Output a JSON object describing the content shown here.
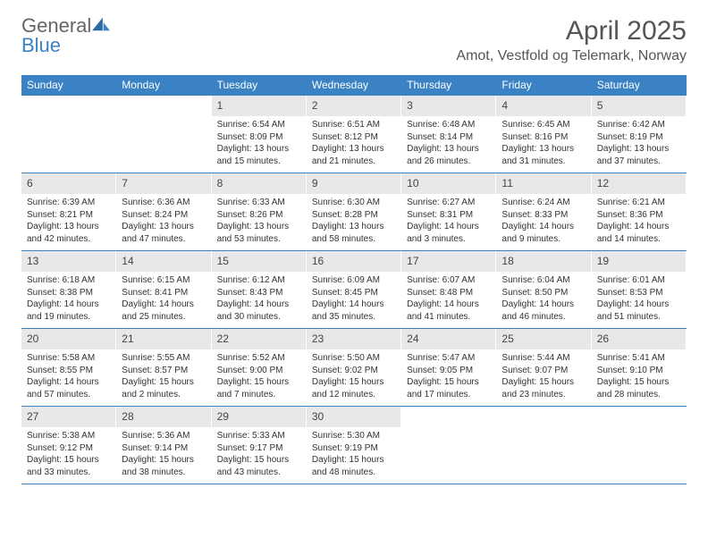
{
  "logo": {
    "text_gray": "General",
    "text_blue": "Blue"
  },
  "title": "April 2025",
  "location": "Amot, Vestfold og Telemark, Norway",
  "colors": {
    "header_bg": "#3b82c4",
    "header_text": "#ffffff",
    "daynum_bg": "#e8e8e8",
    "border": "#3b82c4",
    "body_text": "#333333",
    "title_text": "#555555"
  },
  "typography": {
    "title_fontsize": 30,
    "location_fontsize": 16,
    "dayheader_fontsize": 12,
    "daynum_fontsize": 12,
    "body_fontsize": 10
  },
  "day_headers": [
    "Sunday",
    "Monday",
    "Tuesday",
    "Wednesday",
    "Thursday",
    "Friday",
    "Saturday"
  ],
  "weeks": [
    [
      null,
      null,
      {
        "n": "1",
        "sr": "Sunrise: 6:54 AM",
        "ss": "Sunset: 8:09 PM",
        "dl": "Daylight: 13 hours and 15 minutes."
      },
      {
        "n": "2",
        "sr": "Sunrise: 6:51 AM",
        "ss": "Sunset: 8:12 PM",
        "dl": "Daylight: 13 hours and 21 minutes."
      },
      {
        "n": "3",
        "sr": "Sunrise: 6:48 AM",
        "ss": "Sunset: 8:14 PM",
        "dl": "Daylight: 13 hours and 26 minutes."
      },
      {
        "n": "4",
        "sr": "Sunrise: 6:45 AM",
        "ss": "Sunset: 8:16 PM",
        "dl": "Daylight: 13 hours and 31 minutes."
      },
      {
        "n": "5",
        "sr": "Sunrise: 6:42 AM",
        "ss": "Sunset: 8:19 PM",
        "dl": "Daylight: 13 hours and 37 minutes."
      }
    ],
    [
      {
        "n": "6",
        "sr": "Sunrise: 6:39 AM",
        "ss": "Sunset: 8:21 PM",
        "dl": "Daylight: 13 hours and 42 minutes."
      },
      {
        "n": "7",
        "sr": "Sunrise: 6:36 AM",
        "ss": "Sunset: 8:24 PM",
        "dl": "Daylight: 13 hours and 47 minutes."
      },
      {
        "n": "8",
        "sr": "Sunrise: 6:33 AM",
        "ss": "Sunset: 8:26 PM",
        "dl": "Daylight: 13 hours and 53 minutes."
      },
      {
        "n": "9",
        "sr": "Sunrise: 6:30 AM",
        "ss": "Sunset: 8:28 PM",
        "dl": "Daylight: 13 hours and 58 minutes."
      },
      {
        "n": "10",
        "sr": "Sunrise: 6:27 AM",
        "ss": "Sunset: 8:31 PM",
        "dl": "Daylight: 14 hours and 3 minutes."
      },
      {
        "n": "11",
        "sr": "Sunrise: 6:24 AM",
        "ss": "Sunset: 8:33 PM",
        "dl": "Daylight: 14 hours and 9 minutes."
      },
      {
        "n": "12",
        "sr": "Sunrise: 6:21 AM",
        "ss": "Sunset: 8:36 PM",
        "dl": "Daylight: 14 hours and 14 minutes."
      }
    ],
    [
      {
        "n": "13",
        "sr": "Sunrise: 6:18 AM",
        "ss": "Sunset: 8:38 PM",
        "dl": "Daylight: 14 hours and 19 minutes."
      },
      {
        "n": "14",
        "sr": "Sunrise: 6:15 AM",
        "ss": "Sunset: 8:41 PM",
        "dl": "Daylight: 14 hours and 25 minutes."
      },
      {
        "n": "15",
        "sr": "Sunrise: 6:12 AM",
        "ss": "Sunset: 8:43 PM",
        "dl": "Daylight: 14 hours and 30 minutes."
      },
      {
        "n": "16",
        "sr": "Sunrise: 6:09 AM",
        "ss": "Sunset: 8:45 PM",
        "dl": "Daylight: 14 hours and 35 minutes."
      },
      {
        "n": "17",
        "sr": "Sunrise: 6:07 AM",
        "ss": "Sunset: 8:48 PM",
        "dl": "Daylight: 14 hours and 41 minutes."
      },
      {
        "n": "18",
        "sr": "Sunrise: 6:04 AM",
        "ss": "Sunset: 8:50 PM",
        "dl": "Daylight: 14 hours and 46 minutes."
      },
      {
        "n": "19",
        "sr": "Sunrise: 6:01 AM",
        "ss": "Sunset: 8:53 PM",
        "dl": "Daylight: 14 hours and 51 minutes."
      }
    ],
    [
      {
        "n": "20",
        "sr": "Sunrise: 5:58 AM",
        "ss": "Sunset: 8:55 PM",
        "dl": "Daylight: 14 hours and 57 minutes."
      },
      {
        "n": "21",
        "sr": "Sunrise: 5:55 AM",
        "ss": "Sunset: 8:57 PM",
        "dl": "Daylight: 15 hours and 2 minutes."
      },
      {
        "n": "22",
        "sr": "Sunrise: 5:52 AM",
        "ss": "Sunset: 9:00 PM",
        "dl": "Daylight: 15 hours and 7 minutes."
      },
      {
        "n": "23",
        "sr": "Sunrise: 5:50 AM",
        "ss": "Sunset: 9:02 PM",
        "dl": "Daylight: 15 hours and 12 minutes."
      },
      {
        "n": "24",
        "sr": "Sunrise: 5:47 AM",
        "ss": "Sunset: 9:05 PM",
        "dl": "Daylight: 15 hours and 17 minutes."
      },
      {
        "n": "25",
        "sr": "Sunrise: 5:44 AM",
        "ss": "Sunset: 9:07 PM",
        "dl": "Daylight: 15 hours and 23 minutes."
      },
      {
        "n": "26",
        "sr": "Sunrise: 5:41 AM",
        "ss": "Sunset: 9:10 PM",
        "dl": "Daylight: 15 hours and 28 minutes."
      }
    ],
    [
      {
        "n": "27",
        "sr": "Sunrise: 5:38 AM",
        "ss": "Sunset: 9:12 PM",
        "dl": "Daylight: 15 hours and 33 minutes."
      },
      {
        "n": "28",
        "sr": "Sunrise: 5:36 AM",
        "ss": "Sunset: 9:14 PM",
        "dl": "Daylight: 15 hours and 38 minutes."
      },
      {
        "n": "29",
        "sr": "Sunrise: 5:33 AM",
        "ss": "Sunset: 9:17 PM",
        "dl": "Daylight: 15 hours and 43 minutes."
      },
      {
        "n": "30",
        "sr": "Sunrise: 5:30 AM",
        "ss": "Sunset: 9:19 PM",
        "dl": "Daylight: 15 hours and 48 minutes."
      },
      null,
      null,
      null
    ]
  ]
}
